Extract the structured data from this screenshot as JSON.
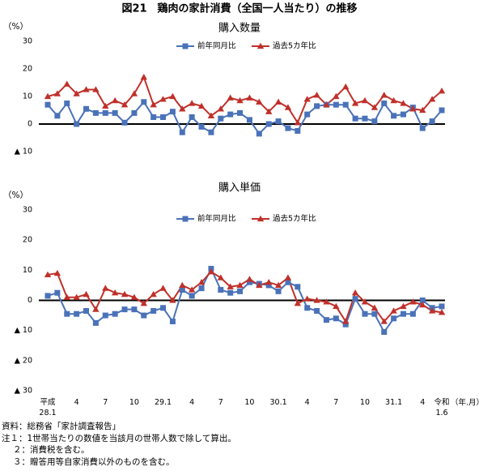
{
  "title": "図21　鶏肉の家計消費（全国一人当たり）の推移",
  "chart_data": [
    {
      "type": "line",
      "subtitle": "購入数量",
      "y_label": "（%）",
      "ylim": [
        -10,
        30
      ],
      "yticks": [
        30,
        20,
        10,
        0,
        {
          "value": -10,
          "label": "▲ 10"
        }
      ],
      "series": [
        {
          "name": "前年同月比",
          "color": "#4a72b8",
          "marker": "square",
          "values": [
            7,
            3,
            7.5,
            0,
            5.5,
            4,
            4,
            4,
            0.5,
            4,
            8,
            2.5,
            2.5,
            4.5,
            -3,
            2.5,
            -1,
            -3,
            2,
            3.5,
            4,
            1.5,
            -3.5,
            0,
            1,
            -1.5,
            -2.5,
            3.5,
            6.5,
            7,
            7,
            7,
            2,
            2,
            1,
            7.5,
            3,
            3.5,
            6,
            -1.5,
            1,
            5
          ]
        },
        {
          "name": "過去5カ年比",
          "color": "#c0302a",
          "marker": "triangle",
          "values": [
            10,
            11,
            14.5,
            11,
            12.5,
            12.5,
            6.5,
            8.5,
            7,
            11,
            17,
            7,
            9,
            10,
            5.5,
            7.5,
            6.5,
            3,
            5.5,
            9.5,
            8.5,
            9.5,
            8,
            4.5,
            8,
            6,
            0.5,
            9,
            10.5,
            7,
            10,
            13.5,
            7.5,
            8.5,
            6,
            10.5,
            8.5,
            7.5,
            5.5,
            5,
            9,
            12
          ]
        }
      ]
    },
    {
      "type": "line",
      "subtitle": "購入単価",
      "y_label": "（%）",
      "x_label": "（年.月）",
      "ylim": [
        -30,
        30
      ],
      "yticks": [
        30,
        20,
        10,
        0,
        {
          "value": -10,
          "label": "▲ 10"
        },
        {
          "value": -20,
          "label": "▲ 20"
        },
        {
          "value": -30,
          "label": "▲ 30"
        }
      ],
      "categories": [
        "平成\n28.1",
        null,
        null,
        "4",
        null,
        null,
        "7",
        null,
        null,
        "10",
        null,
        null,
        "29.1",
        null,
        null,
        "4",
        null,
        null,
        "7",
        null,
        null,
        "10",
        null,
        null,
        "30.1",
        null,
        null,
        "4",
        null,
        null,
        "7",
        null,
        null,
        "10",
        null,
        null,
        "31.1",
        null,
        null,
        "4",
        null,
        "令和\n1.6"
      ],
      "series": [
        {
          "name": "前年同月比",
          "color": "#4a72b8",
          "marker": "square",
          "values": [
            1.5,
            2.5,
            -4.5,
            -4.5,
            -3.5,
            -7.5,
            -5,
            -4.5,
            -3,
            -3,
            -5,
            -3.5,
            -2.5,
            -7,
            3.5,
            1.5,
            4,
            10.5,
            3.5,
            2.5,
            3,
            6,
            5.5,
            5,
            3,
            6,
            4.5,
            -2.5,
            -3.5,
            -6.5,
            -6,
            -8,
            0.5,
            -4.5,
            -4.5,
            -10.5,
            -6,
            -4.5,
            -4.5,
            0,
            -2.5,
            -2
          ]
        },
        {
          "name": "過去5カ年比",
          "color": "#c0302a",
          "marker": "triangle",
          "values": [
            8.5,
            9,
            1,
            1,
            2,
            -3,
            4,
            2.5,
            2,
            1,
            -1,
            2,
            4,
            0,
            5,
            3.5,
            6,
            9.5,
            7.5,
            4.5,
            5,
            7,
            5,
            6,
            5,
            7.5,
            -1,
            0.5,
            0,
            -0.5,
            -2,
            -7,
            2.5,
            -0.5,
            -2.5,
            -7,
            -3.5,
            -2,
            -0.5,
            -1.5,
            -3.5,
            -4
          ]
        }
      ]
    }
  ],
  "notes": [
    "資料：総務省「家計調査報告」",
    "注１：1世帯当たりの数値を当該月の世帯人数で除して算出。",
    "２：消費税を含む。",
    "３：贈答用等自家消費以外のものを含む。"
  ]
}
